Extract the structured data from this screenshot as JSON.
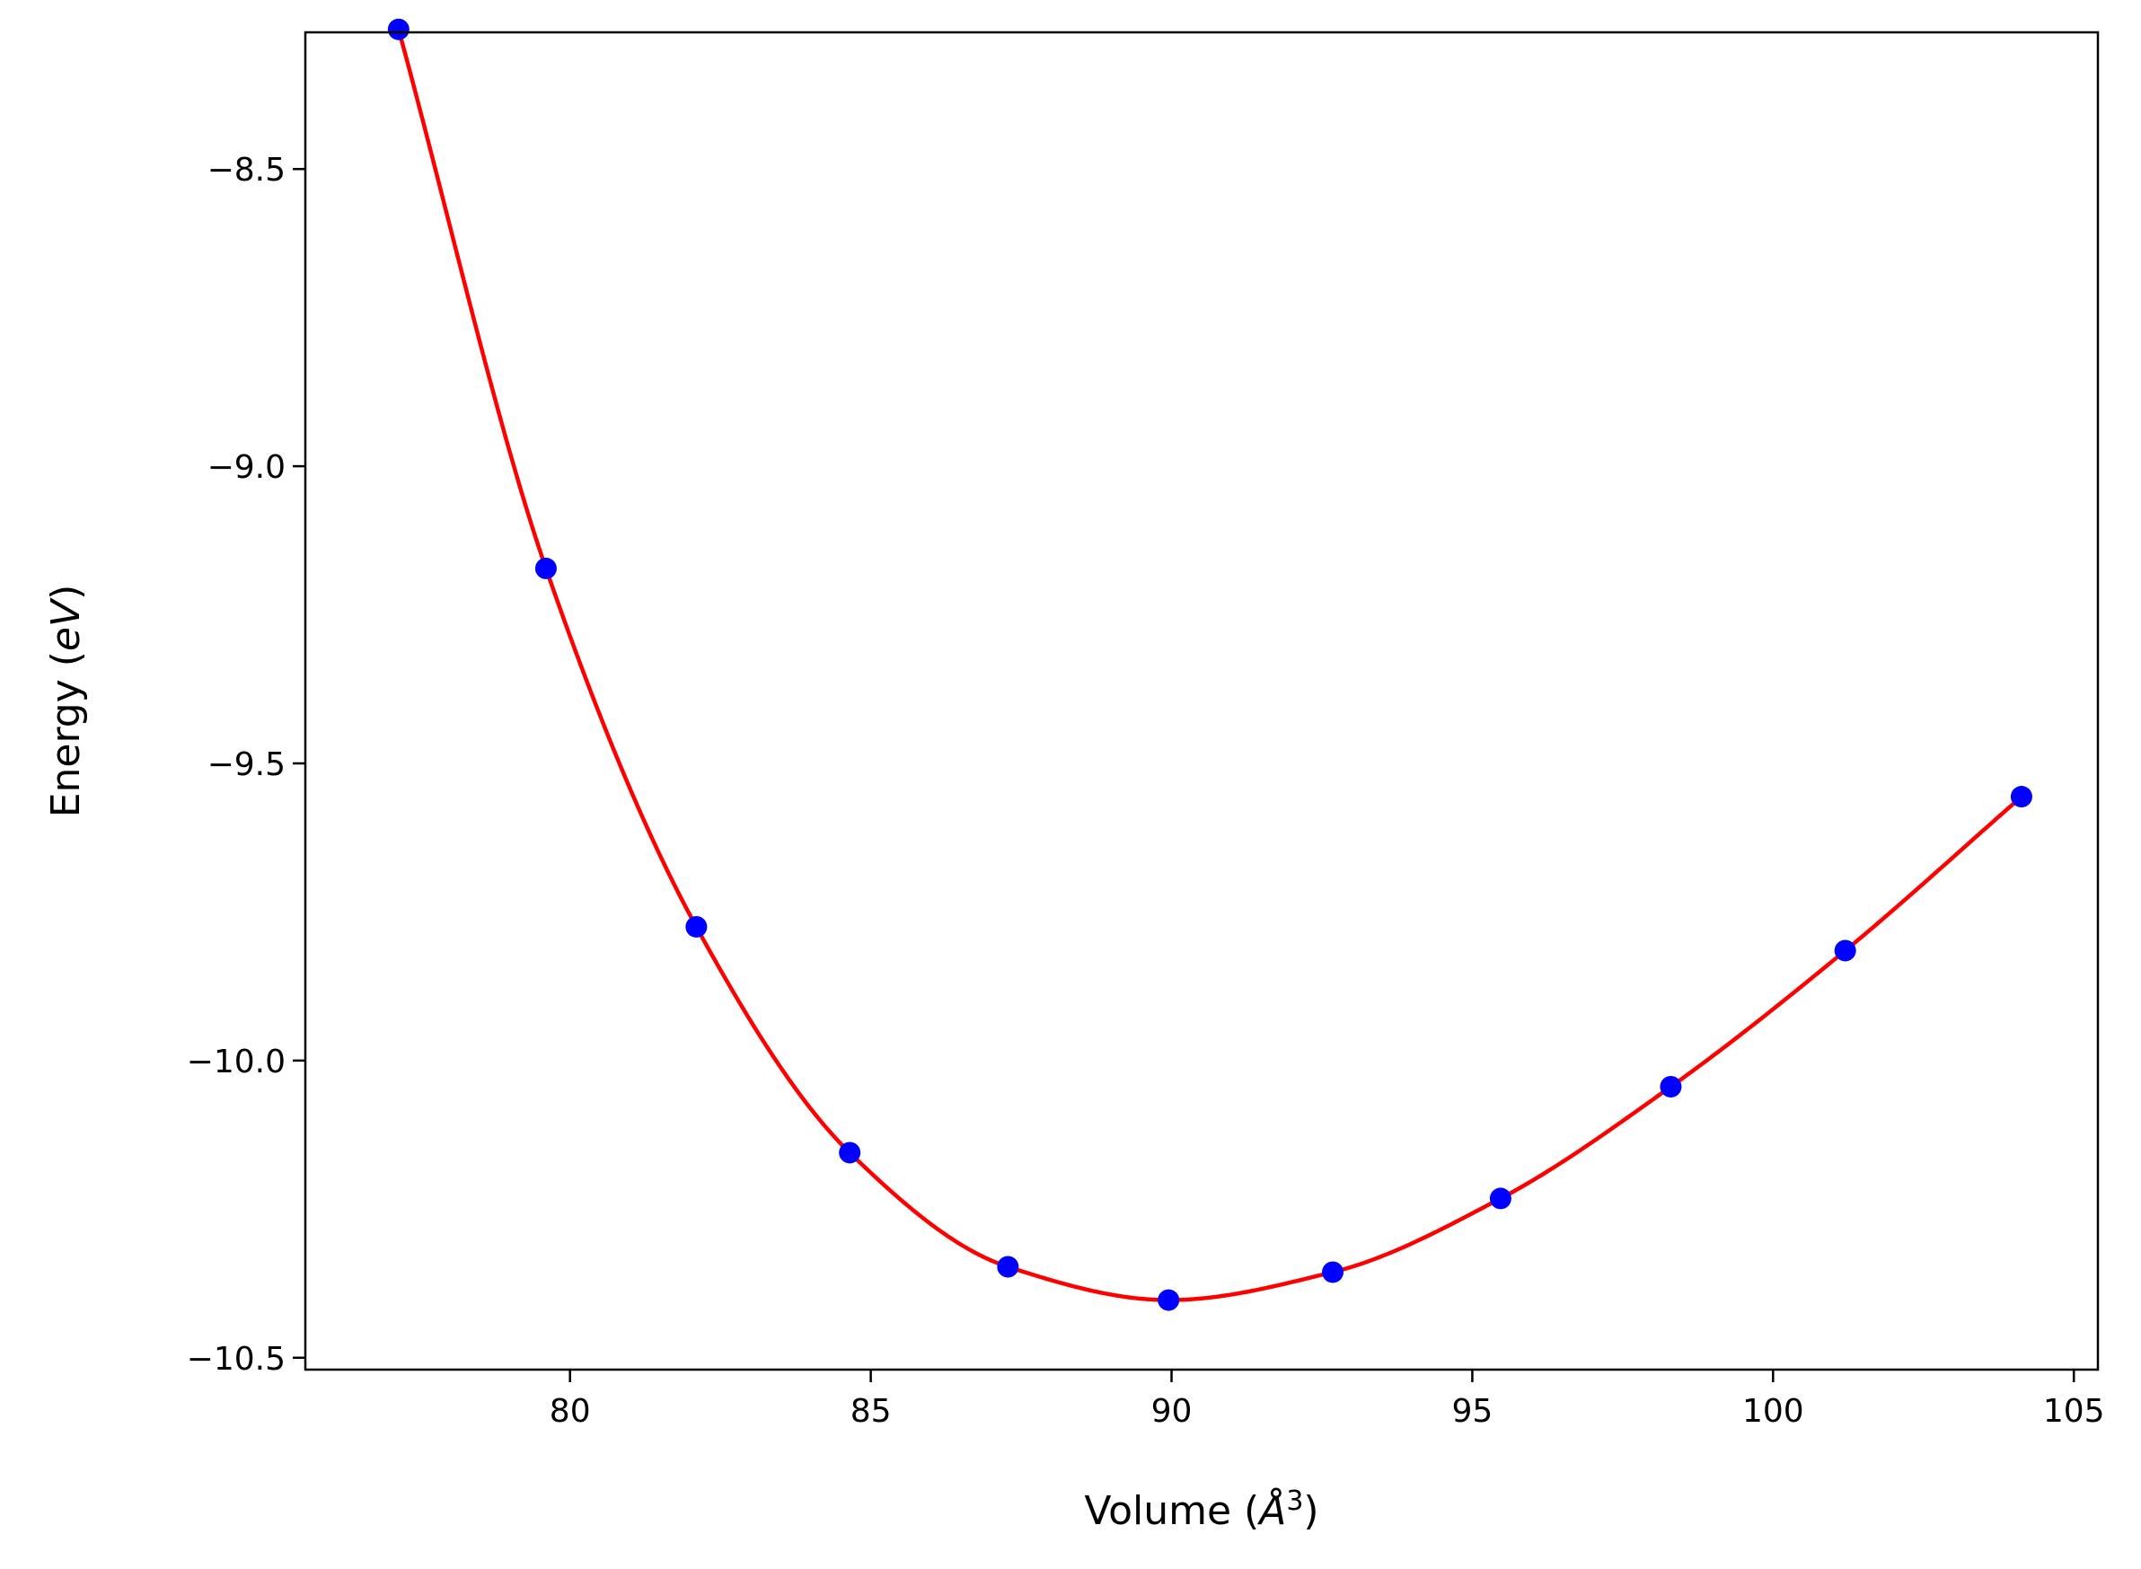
{
  "chart_data": {
    "type": "scatter",
    "xlabel": "Volume (",
    "xlabel_italic": "Å",
    "xlabel_sup": "3",
    "xlabel_close": ")",
    "ylabel": "Energy (",
    "ylabel_italic": "eV",
    "ylabel_close": ")",
    "xlim": [
      75.6,
      105.4
    ],
    "ylim": [
      -10.52,
      -8.27
    ],
    "xticks": [
      80,
      85,
      90,
      95,
      100,
      105
    ],
    "xtick_labels": [
      "80",
      "85",
      "90",
      "95",
      "100",
      "105"
    ],
    "yticks": [
      -8.5,
      -9.0,
      -9.5,
      -10.0,
      -10.5
    ],
    "ytick_labels": [
      "−8.5",
      "−9.0",
      "−9.5",
      "−10.0",
      "−10.5"
    ],
    "grid": false,
    "legend": "none",
    "series": [
      {
        "kind": "points",
        "color": "#0000ff",
        "x": [
          77.15,
          79.6,
          82.1,
          84.65,
          87.28,
          89.95,
          92.68,
          95.47,
          98.3,
          101.2,
          104.13
        ],
        "y": [
          -8.265,
          -9.172,
          -9.775,
          -10.155,
          -10.347,
          -10.403,
          -10.356,
          -10.232,
          -10.044,
          -9.815,
          -9.556
        ]
      },
      {
        "kind": "fit-curve",
        "color": "#ff0000",
        "x": [
          77.15,
          79.6,
          82.1,
          84.65,
          87.28,
          89.95,
          92.68,
          95.47,
          98.3,
          101.2,
          104.13
        ],
        "y": [
          -8.265,
          -9.172,
          -9.775,
          -10.155,
          -10.347,
          -10.403,
          -10.356,
          -10.232,
          -10.044,
          -9.815,
          -9.556
        ]
      }
    ]
  }
}
